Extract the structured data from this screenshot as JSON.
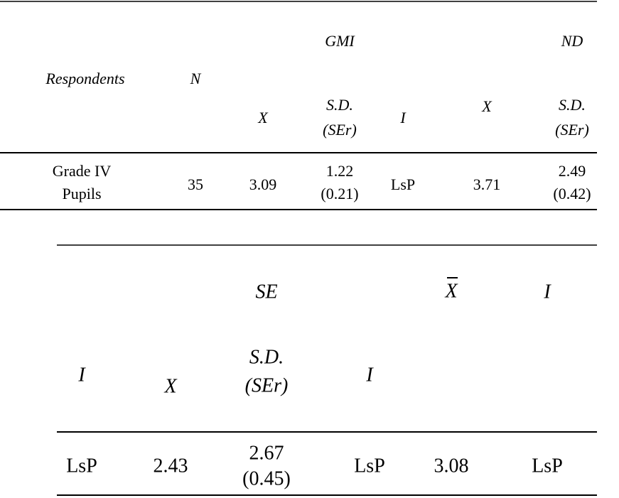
{
  "table_1": {
    "group_headers": [
      "GMI",
      "ND"
    ],
    "headers": [
      "Respondents",
      "N",
      "X",
      [
        "S.D.",
        "(SEr)"
      ],
      "I",
      "X",
      [
        "S.D.",
        "(SEr)"
      ]
    ],
    "rows": [
      [
        [
          "Grade IV",
          "Pupils"
        ],
        "35",
        "3.09",
        [
          "1.22",
          "(0.21)"
        ],
        "LsP",
        "3.71",
        [
          "2.49",
          "(0.42)"
        ]
      ]
    ]
  },
  "table_2": {
    "group_headers": [
      "SE",
      "X",
      "I"
    ],
    "headers": [
      "I",
      "X",
      [
        "S.D.",
        "(SEr)"
      ],
      "I"
    ],
    "rows": [
      [
        "LsP",
        "2.43",
        [
          "2.67",
          "(0.45)"
        ],
        "LsP",
        "3.08",
        "LsP"
      ]
    ]
  }
}
